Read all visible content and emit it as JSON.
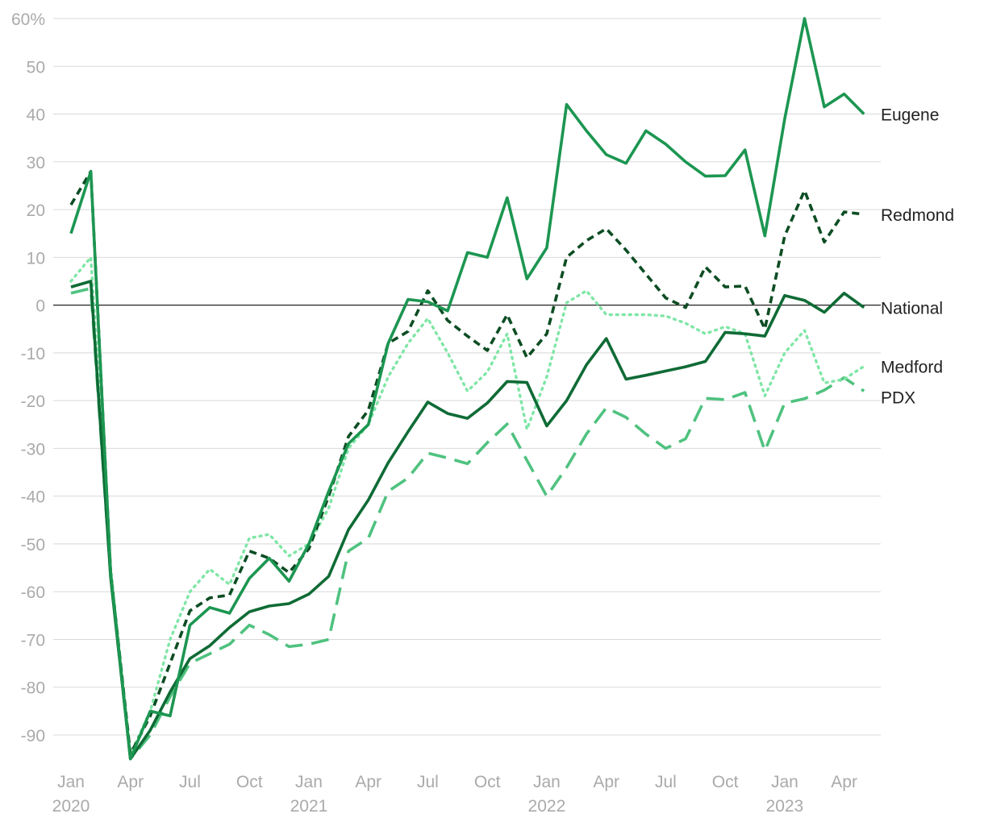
{
  "chart_data": {
    "type": "line",
    "ylim": [
      -95,
      60
    ],
    "y_ticks": [
      {
        "value": 60,
        "label": "60%"
      },
      {
        "value": 50,
        "label": "50"
      },
      {
        "value": 40,
        "label": "40"
      },
      {
        "value": 30,
        "label": "30"
      },
      {
        "value": 20,
        "label": "20"
      },
      {
        "value": 10,
        "label": "10"
      },
      {
        "value": 0,
        "label": "0"
      },
      {
        "value": -10,
        "label": "-10"
      },
      {
        "value": -20,
        "label": "-20"
      },
      {
        "value": -30,
        "label": "-30"
      },
      {
        "value": -40,
        "label": "-40"
      },
      {
        "value": -50,
        "label": "-50"
      },
      {
        "value": -60,
        "label": "-60"
      },
      {
        "value": -70,
        "label": "-70"
      },
      {
        "value": -80,
        "label": "-80"
      },
      {
        "value": -90,
        "label": "-90"
      }
    ],
    "x": [
      "2020-01",
      "2020-02",
      "2020-03",
      "2020-04",
      "2020-05",
      "2020-06",
      "2020-07",
      "2020-08",
      "2020-09",
      "2020-10",
      "2020-11",
      "2020-12",
      "2021-01",
      "2021-02",
      "2021-03",
      "2021-04",
      "2021-05",
      "2021-06",
      "2021-07",
      "2021-08",
      "2021-09",
      "2021-10",
      "2021-11",
      "2021-12",
      "2022-01",
      "2022-02",
      "2022-03",
      "2022-04",
      "2022-05",
      "2022-06",
      "2022-07",
      "2022-08",
      "2022-09",
      "2022-10",
      "2022-11",
      "2022-12",
      "2023-01",
      "2023-02",
      "2023-03",
      "2023-04",
      "2023-05"
    ],
    "x_ticks": [
      {
        "index": 0,
        "label": "Jan",
        "year": "2020"
      },
      {
        "index": 3,
        "label": "Apr",
        "year": ""
      },
      {
        "index": 6,
        "label": "Jul",
        "year": ""
      },
      {
        "index": 9,
        "label": "Oct",
        "year": ""
      },
      {
        "index": 12,
        "label": "Jan",
        "year": "2021"
      },
      {
        "index": 15,
        "label": "Apr",
        "year": ""
      },
      {
        "index": 18,
        "label": "Jul",
        "year": ""
      },
      {
        "index": 21,
        "label": "Oct",
        "year": ""
      },
      {
        "index": 24,
        "label": "Jan",
        "year": "2022"
      },
      {
        "index": 27,
        "label": "Apr",
        "year": ""
      },
      {
        "index": 30,
        "label": "Jul",
        "year": ""
      },
      {
        "index": 33,
        "label": "Oct",
        "year": ""
      },
      {
        "index": 36,
        "label": "Jan",
        "year": "2023"
      },
      {
        "index": 39,
        "label": "Apr",
        "year": ""
      }
    ],
    "series": [
      {
        "name": "PDX",
        "color": "#4fc27f",
        "style": "dashed",
        "values": [
          2.5,
          3.5,
          -57,
          -95,
          -90,
          -82,
          -75,
          -73,
          -71,
          -67,
          -69,
          -71.5,
          -71,
          -70,
          -51.5,
          -48.8,
          -39,
          -36.2,
          -31,
          -32,
          -33.2,
          -28.8,
          -24.9,
          -32.5,
          -40,
          -34,
          -27,
          -21.5,
          -23.5,
          -27,
          -30,
          -28,
          -19.5,
          -19.8,
          -18.3,
          -30.5,
          -20.5,
          -19.6,
          -17.8,
          -15.2,
          -18
        ]
      },
      {
        "name": "Medford",
        "color": "#7fe6a6",
        "style": "dotted",
        "values": [
          5,
          10,
          -55,
          -94,
          -85,
          -70,
          -60,
          -55.3,
          -58.5,
          -48.8,
          -48,
          -52.5,
          -50,
          -42.5,
          -30,
          -25,
          -15,
          -8,
          -2.8,
          -10,
          -18,
          -14,
          -6,
          -26,
          -15,
          0.5,
          3,
          -2,
          -2,
          -2,
          -2.3,
          -3.8,
          -6,
          -4.5,
          -6,
          -19,
          -10,
          -5.3,
          -16.3,
          -15.5,
          -12.8
        ]
      },
      {
        "name": "National",
        "color": "#0f6b35",
        "style": "solid",
        "values": [
          3.8,
          5,
          -57,
          -95,
          -89,
          -81,
          -74,
          -71.3,
          -67.5,
          -64.2,
          -63,
          -62.5,
          -60.5,
          -56.8,
          -47,
          -40.8,
          -33,
          -26.5,
          -20.3,
          -22.7,
          -23.7,
          -20.5,
          -16,
          -16.2,
          -25.3,
          -20,
          -12.5,
          -7,
          -15.5,
          -14.7,
          -13.8,
          -12.9,
          -11.8,
          -5.7,
          -6,
          -6.5,
          2,
          1,
          -1.5,
          2.5,
          -0.5
        ]
      },
      {
        "name": "Redmond",
        "color": "#0d4d23",
        "style": "dashed-short",
        "values": [
          21,
          28,
          -56,
          -94,
          -86,
          -75,
          -64,
          -61.3,
          -60.7,
          -51.5,
          -53,
          -56,
          -51,
          -40,
          -27.5,
          -22,
          -8,
          -5.5,
          3,
          -3.2,
          -6.5,
          -9.5,
          -2,
          -11,
          -6,
          10,
          13.5,
          16,
          11.5,
          6.5,
          1.5,
          -0.5,
          8,
          3.8,
          4,
          -5,
          14.5,
          24,
          13.2,
          19.5,
          19
        ]
      },
      {
        "name": "Eugene",
        "color": "#1c9651",
        "style": "solid",
        "values": [
          15,
          28,
          -56,
          -95,
          -85,
          -86,
          -67,
          -63.3,
          -64.5,
          -57.2,
          -53,
          -57.8,
          -50,
          -39,
          -29,
          -25,
          -8,
          1.2,
          0.7,
          -1.2,
          11,
          10,
          22.5,
          5.5,
          12,
          42,
          36.5,
          31.5,
          29.7,
          36.5,
          33.7,
          30,
          27,
          27.1,
          32.5,
          14.5,
          39,
          60,
          41.5,
          44.2,
          40
        ]
      }
    ]
  }
}
